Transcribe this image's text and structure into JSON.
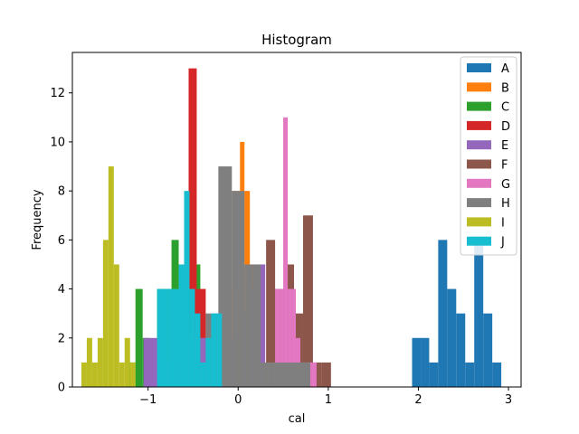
{
  "chart_data": {
    "type": "bar",
    "subtype": "histogram",
    "title": "Histogram",
    "xlabel": "cal",
    "ylabel": "Frequency",
    "xlim": [
      -1.84,
      3.14
    ],
    "ylim": [
      0,
      13.65
    ],
    "x_ticks": [
      -1,
      0,
      1,
      2,
      3
    ],
    "x_tick_labels": [
      "−1",
      "0",
      "1",
      "2",
      "3"
    ],
    "y_ticks": [
      0,
      2,
      4,
      6,
      8,
      10,
      12
    ],
    "y_tick_labels": [
      "0",
      "2",
      "4",
      "6",
      "8",
      "10",
      "12"
    ],
    "legend_position": "top-right",
    "series": [
      {
        "name": "A",
        "color": "#1f77b4",
        "bin_edges": [
          1.93,
          2.03,
          2.12,
          2.22,
          2.32,
          2.42,
          2.52,
          2.62,
          2.72,
          2.82,
          2.92
        ],
        "counts": [
          2,
          2,
          1,
          6,
          4,
          3,
          1,
          6,
          3,
          1
        ]
      },
      {
        "name": "B",
        "color": "#ff7f0e",
        "bin_edges": [
          -0.36,
          -0.31,
          -0.25,
          -0.19,
          -0.13,
          -0.07,
          0.02,
          0.07,
          0.13,
          0.19,
          0.24
        ],
        "counts": [
          1,
          2,
          1,
          1,
          4,
          8,
          10,
          8,
          5,
          4
        ]
      },
      {
        "name": "C",
        "color": "#2ca02c",
        "bin_edges": [
          -1.22,
          -1.14,
          -1.06,
          -0.98,
          -0.9,
          -0.82,
          -0.74,
          -0.66,
          -0.58,
          -0.5,
          -0.42
        ],
        "counts": [
          1,
          4,
          2,
          1,
          4,
          4,
          6,
          4,
          3,
          5
        ]
      },
      {
        "name": "D",
        "color": "#d62728",
        "bin_edges": [
          -0.72,
          -0.65,
          -0.58,
          -0.55,
          -0.46,
          -0.36,
          -0.3,
          -0.25,
          -0.2,
          -0.15,
          -0.1
        ],
        "counts": [
          1,
          2,
          4,
          13,
          4,
          2,
          1,
          1,
          1,
          1
        ]
      },
      {
        "name": "E",
        "color": "#9467bd",
        "bin_edges": [
          -1.05,
          -0.89,
          -0.75,
          -0.6,
          -0.45,
          -0.35,
          -0.2,
          -0.05,
          0.1,
          0.2,
          0.3
        ],
        "counts": [
          2,
          1,
          1,
          2,
          2,
          1,
          2,
          3,
          4,
          5
        ]
      },
      {
        "name": "F",
        "color": "#8c564b",
        "bin_edges": [
          0.31,
          0.41,
          0.52,
          0.62,
          0.72,
          0.83,
          0.93,
          1.03,
          1.14,
          1.24,
          1.35
        ],
        "counts": [
          6,
          4,
          5,
          3,
          7,
          1,
          1,
          0,
          0,
          0
        ]
      },
      {
        "name": "G",
        "color": "#e377c2",
        "bin_edges": [
          0.41,
          0.46,
          0.5,
          0.55,
          0.59,
          0.64,
          0.69,
          0.73,
          0.78,
          0.82,
          0.87
        ],
        "counts": [
          4,
          4,
          11,
          4,
          4,
          2,
          1,
          1,
          1,
          1
        ]
      },
      {
        "name": "H",
        "color": "#7f7f7f",
        "bin_edges": [
          -0.36,
          -0.22,
          -0.07,
          0.07,
          0.16,
          0.25,
          0.36,
          0.46,
          0.57,
          0.69,
          0.8
        ],
        "counts": [
          3,
          9,
          8,
          5,
          5,
          1,
          1,
          1,
          1,
          1
        ]
      },
      {
        "name": "I",
        "color": "#bcbd22",
        "bin_edges": [
          -1.74,
          -1.68,
          -1.62,
          -1.56,
          -1.5,
          -1.44,
          -1.38,
          -1.32,
          -1.26,
          -1.2,
          -1.14
        ],
        "counts": [
          1,
          2,
          1,
          2,
          6,
          9,
          5,
          1,
          2,
          1
        ]
      },
      {
        "name": "J",
        "color": "#17becf",
        "bin_edges": [
          -0.9,
          -0.78,
          -0.66,
          -0.6,
          -0.54,
          -0.48,
          -0.42,
          -0.36,
          -0.3,
          -0.24,
          -0.18
        ],
        "counts": [
          4,
          4,
          5,
          8,
          4,
          3,
          1,
          2,
          3,
          3
        ]
      }
    ]
  }
}
